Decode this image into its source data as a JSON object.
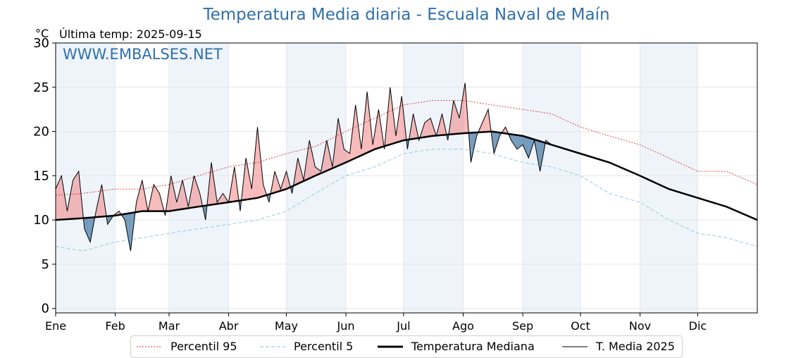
{
  "title": "Temperatura Media diaria - Escuala Naval de Maín",
  "unit": "°C",
  "last_temp": "Última temp: 2025-09-15",
  "watermark": "WWW.EMBALSES.NET",
  "legend": [
    {
      "label": "Percentil 95",
      "color": "#e03030",
      "style": "dotted"
    },
    {
      "label": "Percentil 5",
      "color": "#9ccfe0",
      "style": "dashed"
    },
    {
      "label": "Temperatura Mediana",
      "color": "#000000",
      "style": "thick"
    },
    {
      "label": "T. Media 2025",
      "color": "#000000",
      "style": "thin"
    }
  ],
  "chart_data": {
    "type": "line",
    "title": "Temperatura Media diaria - Escuala Naval de Maín",
    "ylabel": "°C",
    "ylim": [
      -0.5,
      30
    ],
    "yticks": [
      0,
      5,
      10,
      15,
      20,
      25,
      30
    ],
    "xlim": [
      1,
      366
    ],
    "months": [
      {
        "label": "Ene",
        "day": 1
      },
      {
        "label": "Feb",
        "day": 32
      },
      {
        "label": "Mar",
        "day": 60
      },
      {
        "label": "Abr",
        "day": 91
      },
      {
        "label": "May",
        "day": 121
      },
      {
        "label": "Jun",
        "day": 152
      },
      {
        "label": "Jul",
        "day": 182
      },
      {
        "label": "Ago",
        "day": 213
      },
      {
        "label": "Sep",
        "day": 244
      },
      {
        "label": "Oct",
        "day": 274
      },
      {
        "label": "Nov",
        "day": 305
      },
      {
        "label": "Dic",
        "day": 335
      }
    ],
    "shaded_month_indices": [
      0,
      2,
      4,
      6,
      8,
      10
    ],
    "above_fill_color": "#f08080",
    "below_fill_color": "#4f7fab",
    "series": [
      {
        "name": "Percentil 95",
        "color": "#e03030",
        "style": "dotted",
        "x": [
          1,
          15,
          32,
          46,
          60,
          75,
          91,
          106,
          121,
          136,
          152,
          167,
          182,
          197,
          213,
          228,
          244,
          259,
          274,
          289,
          305,
          320,
          335,
          350,
          366
        ],
        "y": [
          12.8,
          13.0,
          13.5,
          13.5,
          14.0,
          15.0,
          16.0,
          16.5,
          17.5,
          18.3,
          20.0,
          21.5,
          23.0,
          23.5,
          23.5,
          23.0,
          22.5,
          22.0,
          20.5,
          19.5,
          18.5,
          17.0,
          15.5,
          15.5,
          14.0
        ]
      },
      {
        "name": "Percentil 5",
        "color": "#9ccfe0",
        "style": "dashed",
        "x": [
          1,
          15,
          32,
          46,
          60,
          75,
          91,
          106,
          121,
          136,
          152,
          167,
          182,
          197,
          213,
          228,
          244,
          259,
          274,
          289,
          305,
          320,
          335,
          350,
          366
        ],
        "y": [
          7.0,
          6.5,
          7.5,
          8.0,
          8.5,
          9.0,
          9.5,
          10.0,
          11.0,
          13.0,
          15.0,
          16.0,
          17.5,
          18.0,
          18.0,
          17.5,
          16.5,
          16.0,
          15.0,
          13.0,
          12.0,
          10.0,
          8.5,
          8.0,
          7.0
        ]
      },
      {
        "name": "Temperatura Mediana",
        "color": "#000000",
        "style": "thick",
        "x": [
          1,
          15,
          32,
          46,
          60,
          75,
          91,
          106,
          121,
          136,
          152,
          167,
          182,
          197,
          213,
          228,
          244,
          259,
          274,
          289,
          305,
          320,
          335,
          350,
          366
        ],
        "y": [
          10.0,
          10.2,
          10.5,
          11.0,
          11.0,
          11.5,
          12.0,
          12.5,
          13.5,
          15.0,
          16.5,
          18.0,
          19.0,
          19.5,
          19.8,
          20.0,
          19.5,
          18.5,
          17.5,
          16.5,
          15.0,
          13.5,
          12.5,
          11.5,
          10.0
        ]
      },
      {
        "name": "T. Media 2025",
        "color": "#000000",
        "style": "thin",
        "x": [
          1,
          4,
          7,
          10,
          13,
          16,
          19,
          22,
          25,
          28,
          31,
          34,
          37,
          40,
          43,
          46,
          49,
          52,
          55,
          58,
          61,
          64,
          67,
          70,
          73,
          76,
          79,
          82,
          85,
          88,
          91,
          94,
          97,
          100,
          103,
          106,
          109,
          112,
          115,
          118,
          121,
          124,
          127,
          130,
          133,
          136,
          139,
          142,
          145,
          148,
          151,
          154,
          157,
          160,
          163,
          166,
          169,
          172,
          175,
          178,
          181,
          184,
          187,
          190,
          193,
          196,
          199,
          202,
          205,
          208,
          211,
          214,
          217,
          220,
          223,
          226,
          229,
          232,
          235,
          238,
          241,
          244,
          247,
          250,
          253,
          256,
          259
        ],
        "y": [
          13.5,
          15.0,
          11.0,
          14.5,
          15.5,
          9.0,
          7.5,
          11.0,
          14.0,
          9.5,
          10.5,
          11.0,
          10.0,
          6.5,
          12.0,
          14.5,
          11.0,
          14.0,
          13.0,
          10.5,
          15.0,
          12.0,
          14.5,
          11.5,
          15.0,
          13.0,
          10.0,
          16.5,
          12.0,
          13.0,
          12.0,
          16.0,
          11.0,
          17.0,
          13.5,
          20.5,
          14.0,
          12.0,
          15.5,
          13.5,
          15.5,
          13.0,
          17.0,
          14.5,
          19.0,
          16.0,
          15.5,
          19.0,
          16.0,
          21.5,
          18.0,
          17.5,
          23.0,
          18.0,
          24.5,
          18.5,
          22.5,
          18.0,
          25.0,
          19.5,
          24.0,
          18.0,
          22.0,
          19.0,
          21.0,
          21.5,
          19.5,
          22.0,
          19.0,
          23.5,
          21.5,
          25.5,
          16.5,
          19.5,
          21.0,
          22.5,
          17.5,
          19.5,
          20.5,
          19.0,
          18.0,
          18.5,
          17.0,
          19.0,
          15.5,
          19.0,
          18.5
        ]
      }
    ]
  }
}
